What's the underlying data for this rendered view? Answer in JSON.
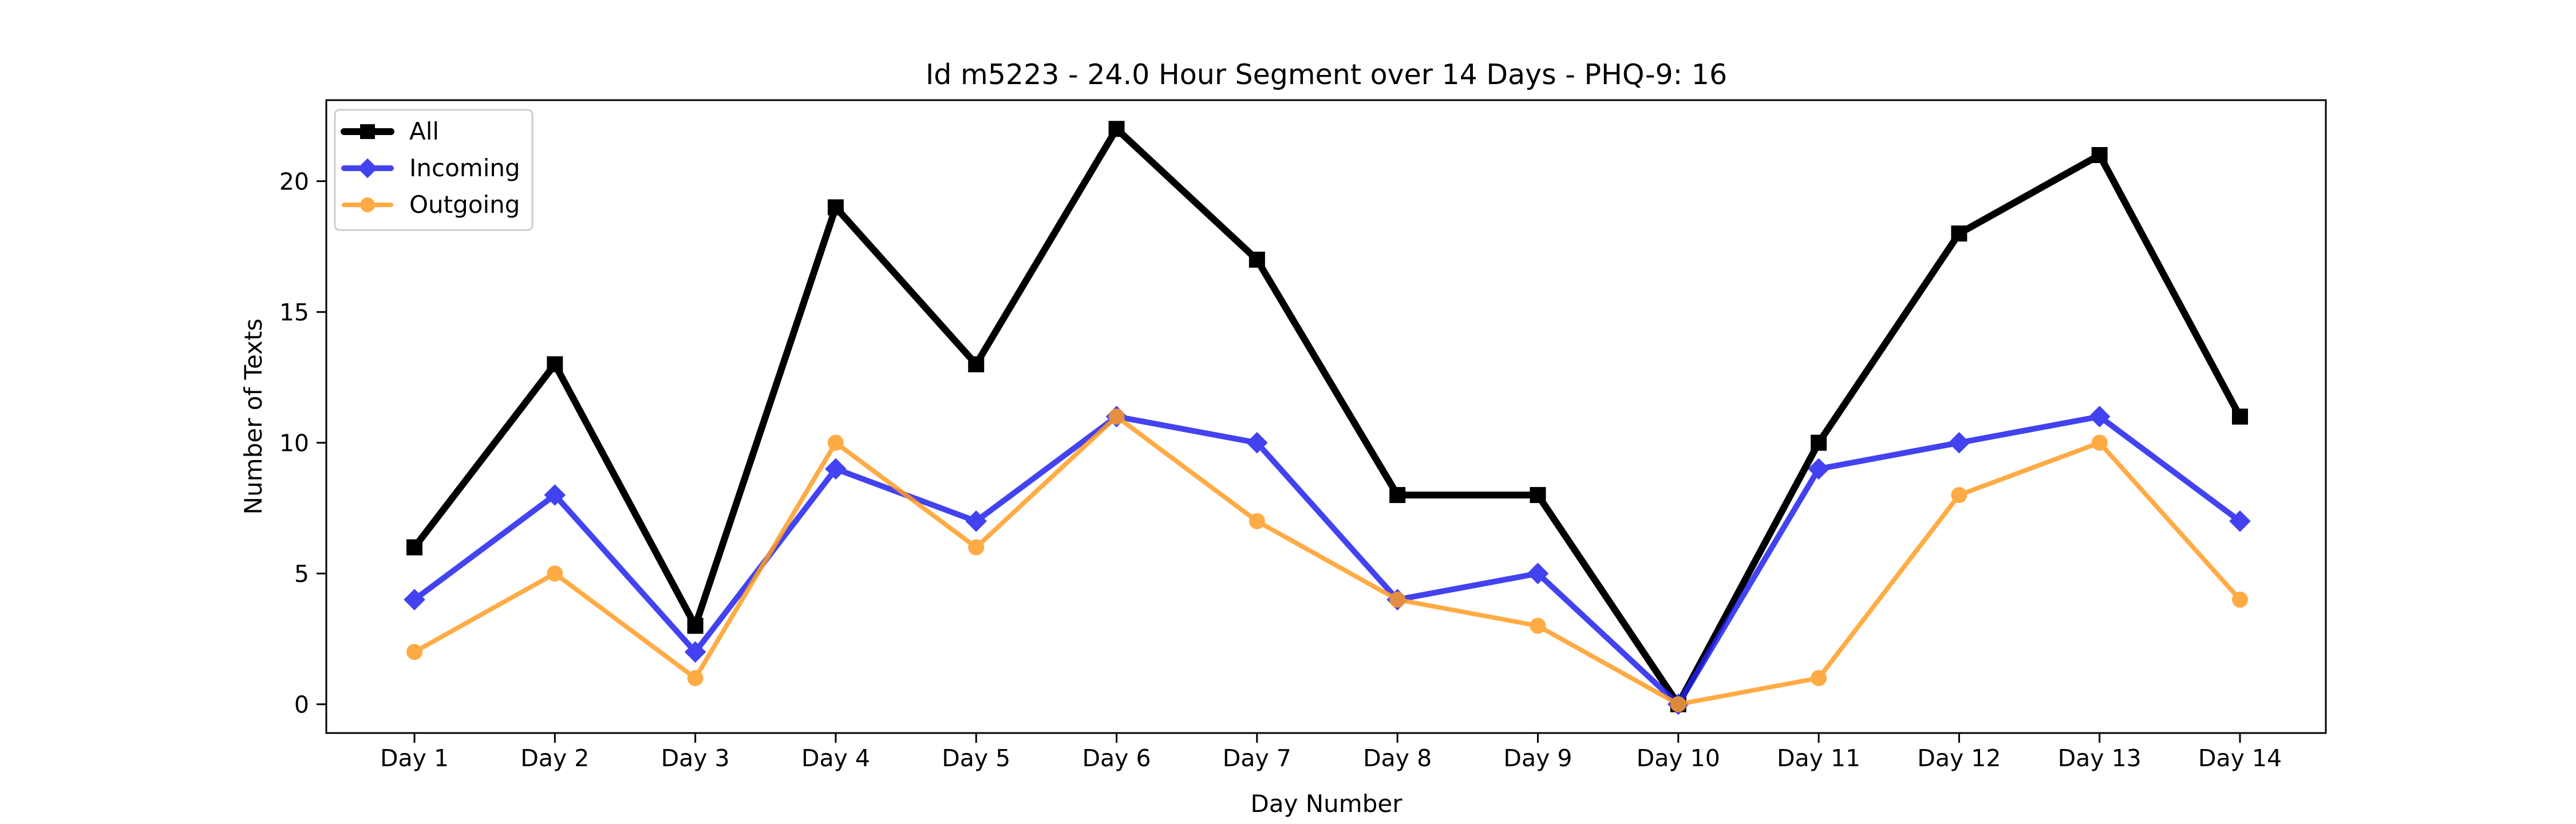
{
  "chart_data": {
    "type": "line",
    "title": "Id m5223 - 24.0 Hour Segment over 14 Days - PHQ-9: 16",
    "xlabel": "Day Number",
    "ylabel": "Number of Texts",
    "categories": [
      "Day 1",
      "Day 2",
      "Day 3",
      "Day 4",
      "Day 5",
      "Day 6",
      "Day 7",
      "Day 8",
      "Day 9",
      "Day 10",
      "Day 11",
      "Day 12",
      "Day 13",
      "Day 14"
    ],
    "ylim": [
      -1.1,
      23.1
    ],
    "yticks": [
      0,
      5,
      10,
      15,
      20
    ],
    "grid": false,
    "legend_position": "top-left",
    "series": [
      {
        "name": "All",
        "color": "#000000",
        "marker": "square",
        "values": [
          6,
          13,
          3,
          19,
          13,
          22,
          17,
          8,
          8,
          0,
          10,
          18,
          21,
          11
        ]
      },
      {
        "name": "Incoming",
        "color": "#2222ee",
        "marker": "diamond",
        "values": [
          4,
          8,
          2,
          9,
          7,
          11,
          10,
          4,
          5,
          0,
          9,
          10,
          11,
          7
        ]
      },
      {
        "name": "Outgoing",
        "color": "#ff9d25",
        "marker": "circle",
        "values": [
          2,
          5,
          1,
          10,
          6,
          11,
          7,
          4,
          3,
          0,
          1,
          8,
          10,
          4
        ]
      }
    ]
  }
}
